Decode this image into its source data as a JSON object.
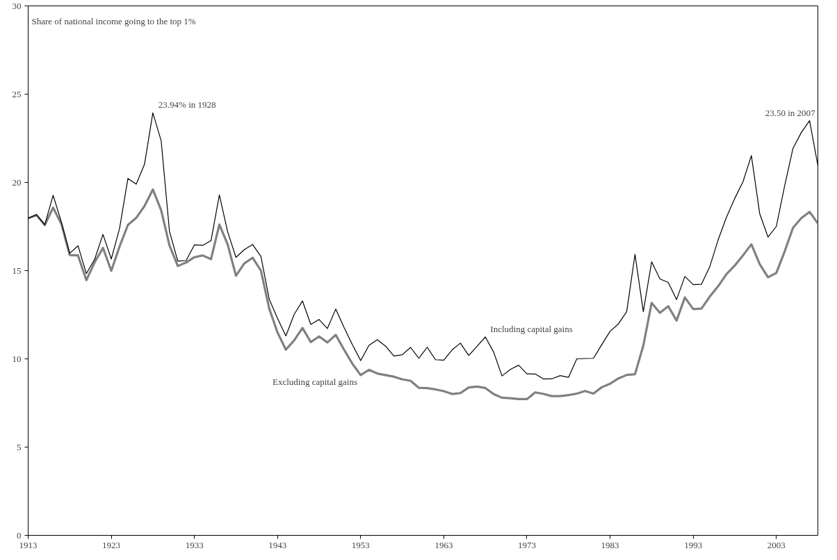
{
  "chart_data": {
    "type": "line",
    "x": [
      1913,
      1914,
      1915,
      1916,
      1917,
      1918,
      1919,
      1920,
      1921,
      1922,
      1923,
      1924,
      1925,
      1926,
      1927,
      1928,
      1929,
      1930,
      1931,
      1932,
      1933,
      1934,
      1935,
      1936,
      1937,
      1938,
      1939,
      1940,
      1941,
      1942,
      1943,
      1944,
      1945,
      1946,
      1947,
      1948,
      1949,
      1950,
      1951,
      1952,
      1953,
      1954,
      1955,
      1956,
      1957,
      1958,
      1959,
      1960,
      1961,
      1962,
      1963,
      1964,
      1965,
      1966,
      1967,
      1968,
      1969,
      1970,
      1971,
      1972,
      1973,
      1974,
      1975,
      1976,
      1977,
      1978,
      1979,
      1980,
      1981,
      1982,
      1983,
      1984,
      1985,
      1986,
      1987,
      1988,
      1989,
      1990,
      1991,
      1992,
      1993,
      1994,
      1995,
      1996,
      1997,
      1998,
      1999,
      2000,
      2001,
      2002,
      2003,
      2004,
      2005,
      2006,
      2007,
      2008
    ],
    "series": [
      {
        "name": "Including capital gains",
        "color": "#000000",
        "values": [
          17.96,
          18.16,
          17.6,
          19.27,
          17.75,
          15.98,
          16.41,
          14.83,
          15.64,
          17.05,
          15.66,
          17.4,
          20.22,
          19.9,
          21.03,
          23.94,
          22.36,
          17.23,
          15.54,
          15.57,
          16.46,
          16.43,
          16.7,
          19.29,
          17.2,
          15.75,
          16.19,
          16.48,
          15.8,
          13.38,
          12.29,
          11.3,
          12.52,
          13.28,
          11.95,
          12.23,
          11.72,
          12.82,
          11.78,
          10.81,
          9.9,
          10.77,
          11.08,
          10.72,
          10.16,
          10.23,
          10.65,
          10.03,
          10.66,
          9.95,
          9.93,
          10.51,
          10.89,
          10.19,
          10.71,
          11.24,
          10.38,
          9.03,
          9.4,
          9.64,
          9.15,
          9.14,
          8.86,
          8.87,
          9.05,
          8.95,
          10.0,
          10.02,
          10.03,
          10.8,
          11.56,
          11.98,
          12.67,
          15.92,
          12.67,
          15.5,
          14.53,
          14.33,
          13.36,
          14.67,
          14.21,
          14.23,
          15.23,
          16.74,
          18.02,
          19.09,
          20.05,
          21.52,
          18.23,
          16.9,
          17.5,
          19.8,
          21.92,
          22.82,
          23.5,
          20.95
        ]
      },
      {
        "name": "Excluding capital gains",
        "color": "#808080",
        "values": [
          17.96,
          18.16,
          17.58,
          18.57,
          17.64,
          15.88,
          15.86,
          14.46,
          15.47,
          16.29,
          14.99,
          16.37,
          17.59,
          17.99,
          18.66,
          19.6,
          18.42,
          16.43,
          15.26,
          15.46,
          15.76,
          15.86,
          15.65,
          17.61,
          16.48,
          14.71,
          15.41,
          15.73,
          15.0,
          12.85,
          11.49,
          10.52,
          11.05,
          11.75,
          10.95,
          11.27,
          10.93,
          11.36,
          10.52,
          9.73,
          9.08,
          9.38,
          9.17,
          9.08,
          8.99,
          8.84,
          8.76,
          8.36,
          8.34,
          8.27,
          8.17,
          8.01,
          8.06,
          8.38,
          8.43,
          8.35,
          8.0,
          7.8,
          7.77,
          7.72,
          7.72,
          8.1,
          8.01,
          7.89,
          7.89,
          7.95,
          8.03,
          8.18,
          8.03,
          8.39,
          8.59,
          8.89,
          9.09,
          9.13,
          10.75,
          13.17,
          12.61,
          12.98,
          12.17,
          13.48,
          12.82,
          12.85,
          13.53,
          14.11,
          14.8,
          15.29,
          15.87,
          16.49,
          15.37,
          14.62,
          14.87,
          16.08,
          17.42,
          17.97,
          18.33,
          17.67
        ]
      }
    ],
    "annotations": [
      "Share of national income going to the top 1%",
      {
        "text": "23.94% in 1928",
        "x": 1928,
        "y": 23.94
      },
      {
        "text": "23.50 in 2007",
        "x": 2007,
        "y": 23.5
      }
    ],
    "xlim": [
      1913,
      2008
    ],
    "xticks": [
      1913,
      1923,
      1933,
      1943,
      1953,
      1963,
      1973,
      1983,
      1993,
      2003
    ],
    "ylim": [
      0,
      30
    ],
    "yticks": [
      0,
      5,
      10,
      15,
      20,
      25,
      30
    ],
    "grid": false,
    "legend": false,
    "marker": "none",
    "line_style": "solid"
  }
}
